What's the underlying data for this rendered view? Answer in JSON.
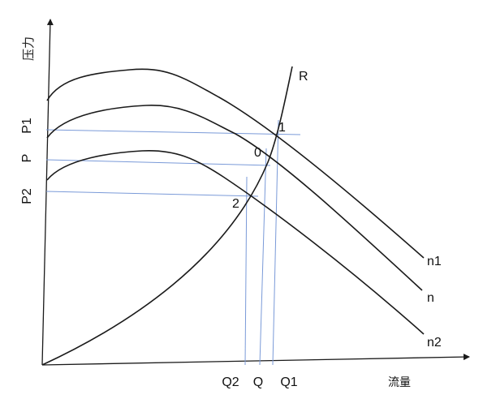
{
  "axes": {
    "y_title": "压力",
    "x_title": "流量"
  },
  "y_ticks": {
    "p1": "P1",
    "p": "P",
    "p2": "P2"
  },
  "x_ticks": {
    "q2": "Q2",
    "q": "Q",
    "q1": "Q1"
  },
  "curve_labels": {
    "n1": "n1",
    "n": "n",
    "n2": "n2",
    "r": "R"
  },
  "points": {
    "p1": "1",
    "p0": "0",
    "p2": "2"
  },
  "colors": {
    "curve": "#1a1a1a",
    "guide": "#7a9ad8"
  }
}
